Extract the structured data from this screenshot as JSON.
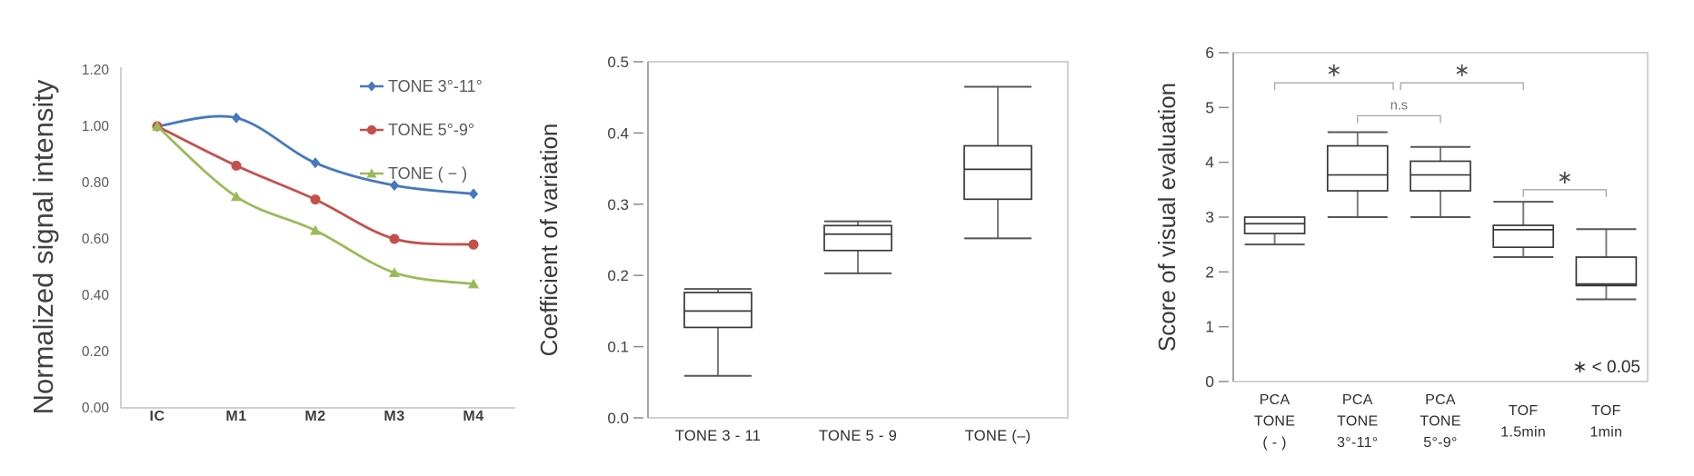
{
  "page": {
    "background": "#ffffff"
  },
  "chart_data": [
    {
      "id": "line-chart",
      "type": "line",
      "ylabel": "Normalized signal intensity",
      "categories": [
        "IC",
        "M1",
        "M2",
        "M3",
        "M4"
      ],
      "ylim": [
        0,
        1.2
      ],
      "ytick_step": 0.2,
      "ytick_decimals": 2,
      "grid": false,
      "legend_position": "top-right",
      "series": [
        {
          "name": "TONE 3°-11°",
          "marker": "diamond",
          "color": "#4679BD",
          "values": [
            1.0,
            1.03,
            0.87,
            0.79,
            0.76
          ]
        },
        {
          "name": "TONE 5°-9°",
          "marker": "circle",
          "color": "#C5504B",
          "values": [
            1.0,
            0.86,
            0.74,
            0.6,
            0.58
          ]
        },
        {
          "name": "TONE ( − )",
          "marker": "triangle",
          "color": "#9BBB59",
          "values": [
            1.0,
            0.75,
            0.63,
            0.48,
            0.44
          ]
        }
      ]
    },
    {
      "id": "cv-box-chart",
      "type": "box",
      "ylabel": "Coefficient of variation",
      "categories": [
        "TONE 3 - 11",
        "TONE 5 - 9",
        "TONE (–)"
      ],
      "ylim": [
        0,
        0.5
      ],
      "ytick_step": 0.1,
      "ytick_decimals": 1,
      "grid": false,
      "boxes": [
        {
          "min": 0.059,
          "q1": 0.127,
          "median": 0.15,
          "q3": 0.176,
          "max": 0.181
        },
        {
          "min": 0.203,
          "q1": 0.235,
          "median": 0.258,
          "q3": 0.27,
          "max": 0.276
        },
        {
          "min": 0.252,
          "q1": 0.307,
          "median": 0.349,
          "q3": 0.382,
          "max": 0.465
        }
      ]
    },
    {
      "id": "score-box-chart",
      "type": "box",
      "ylabel": "Score of visual evaluation",
      "categories": [
        [
          "PCA",
          "TONE",
          "( - )"
        ],
        [
          "PCA",
          "TONE",
          "3°-11°"
        ],
        [
          "PCA",
          "TONE",
          "5°-9°"
        ],
        [
          "TOF",
          "1.5min"
        ],
        [
          "TOF",
          "1min"
        ]
      ],
      "ylim": [
        0,
        6
      ],
      "ytick_step": 1,
      "ytick_decimals": 0,
      "grid": false,
      "boxes": [
        {
          "min": 2.5,
          "q1": 2.7,
          "median": 2.88,
          "q3": 3.0,
          "max": 3.0
        },
        {
          "min": 3.0,
          "q1": 3.48,
          "median": 3.77,
          "q3": 4.3,
          "max": 4.55
        },
        {
          "min": 3.0,
          "q1": 3.48,
          "median": 3.77,
          "q3": 4.02,
          "max": 4.28
        },
        {
          "min": 2.27,
          "q1": 2.45,
          "median": 2.77,
          "q3": 2.85,
          "max": 3.28
        },
        {
          "min": 1.5,
          "q1": 1.75,
          "median": 1.78,
          "q3": 2.27,
          "max": 2.78
        }
      ],
      "brackets": [
        {
          "from": 0,
          "to": 1.43,
          "y": 5.45,
          "label": "∗"
        },
        {
          "from": 1.52,
          "to": 3,
          "y": 5.45,
          "label": "∗"
        },
        {
          "from": 1,
          "to": 2,
          "y": 4.85,
          "label": "n.s"
        },
        {
          "from": 3,
          "to": 4,
          "y": 3.5,
          "label": "∗"
        }
      ],
      "note": "∗ < 0.05"
    }
  ]
}
